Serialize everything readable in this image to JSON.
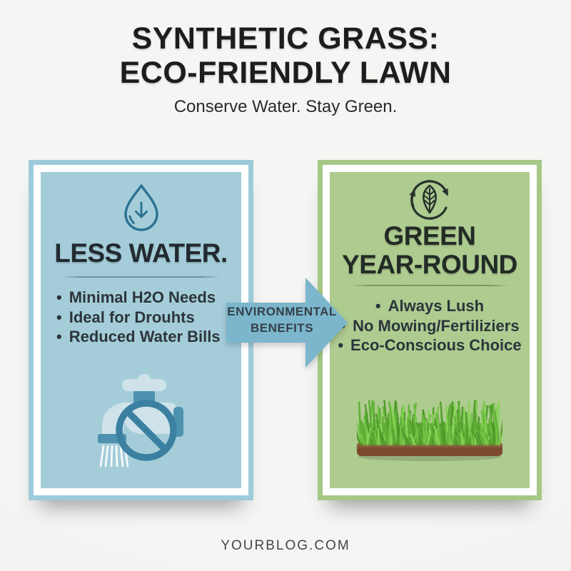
{
  "header": {
    "title_line1": "SYNTHETIC GRASS:",
    "title_line2": "ECO-FRIENDLY LAWN",
    "subtitle": "Conserve Water. Stay Green."
  },
  "left_panel": {
    "icon": "water-drop-icon",
    "heading": "LESS WATER.",
    "bullets": [
      "Minimal H2O Needs",
      "Ideal for Drouhts",
      "Reduced Water Bills"
    ],
    "bottom_icon": "no-watering-faucet-icon",
    "colors": {
      "fill": "#a4cdd9",
      "border": "#9ecbdb",
      "icon_stroke": "#2b7292"
    }
  },
  "connector_arrow": {
    "label_line1": "ENVIRONMENTAL",
    "label_line2": "BENEFITS",
    "color": "#7cb6cc"
  },
  "right_panel": {
    "icon": "leaf-cycle-icon",
    "heading_line1": "GREEN",
    "heading_line2": "YEAR-ROUND",
    "bullets": [
      "Always Lush",
      "No Mowing/Fertiliziers",
      "Eco-Conscious Choice"
    ],
    "bottom_image": "synthetic-grass-patch",
    "colors": {
      "fill": "#aecb90",
      "border": "#a6c887"
    }
  },
  "footer": {
    "website": "YOURBLOG.COM"
  }
}
